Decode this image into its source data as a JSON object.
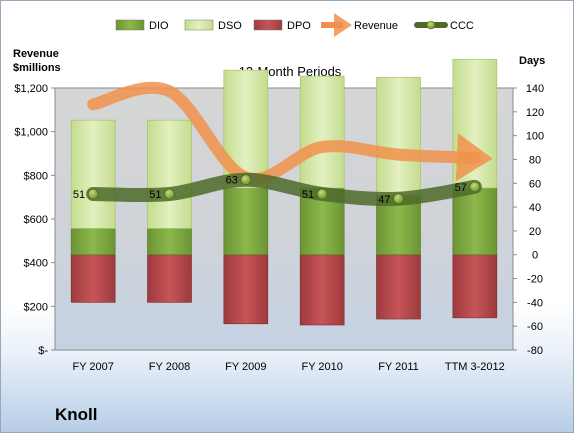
{
  "chart_data": {
    "type": "bar",
    "title": "12-Month Periods",
    "y_left_label": "Revenue\n$millions",
    "y_right_label": "Days",
    "categories": [
      "FY 2007",
      "FY 2008",
      "FY 2009",
      "FY 2010",
      "FY 2011",
      "TTM 3-2012"
    ],
    "y_left_ticks": [
      "$1,200",
      "$1,000",
      "$800",
      "$600",
      "$400",
      "$200",
      "$-"
    ],
    "y_left_range": [
      0,
      1200
    ],
    "y_right_ticks": [
      "140",
      "120",
      "100",
      "80",
      "60",
      "40",
      "20",
      "0",
      "-20",
      "-40",
      "-60",
      "-80"
    ],
    "y_right_range": [
      -80,
      140
    ],
    "series": [
      {
        "name": "DIO",
        "kind": "bar-stack-positive",
        "values": [
          22,
          22,
          56,
          56,
          50,
          56
        ],
        "color": "#7aa23c"
      },
      {
        "name": "DSO",
        "kind": "bar-stack-positive",
        "values": [
          91,
          91,
          99,
          94,
          99,
          108
        ],
        "color": "#d6e9a8"
      },
      {
        "name": "DPO",
        "kind": "bar-stack-negative",
        "values": [
          -40,
          -40,
          -58,
          -59,
          -54,
          -53
        ],
        "color": "#b5474a"
      },
      {
        "name": "Revenue",
        "kind": "line",
        "values": [
          1125,
          1185,
          790,
          930,
          895,
          880
        ],
        "color": "#f0924b"
      },
      {
        "name": "CCC",
        "kind": "line",
        "values": [
          51,
          51,
          63,
          51,
          47,
          57
        ],
        "color": "#4e6a2a"
      }
    ],
    "ccc_labels": [
      "51",
      "51",
      "63",
      "51",
      "47",
      "57"
    ],
    "legend": "top",
    "grid": false
  },
  "company": "Knoll"
}
